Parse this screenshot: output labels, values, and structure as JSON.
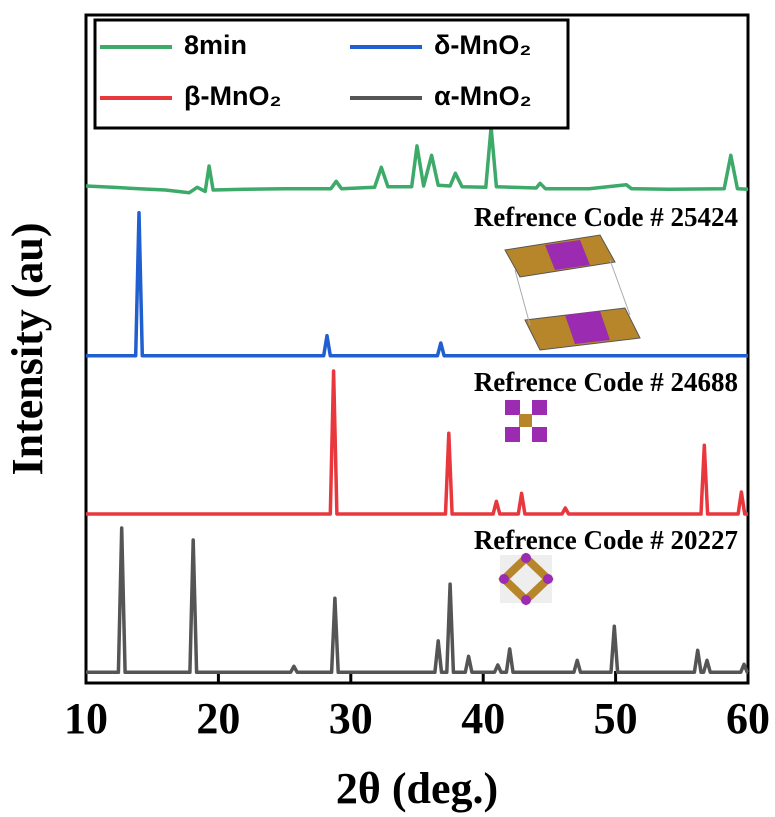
{
  "chart_data": {
    "type": "line",
    "xlabel": "2θ (deg.)",
    "ylabel": "Intensity (au)",
    "xlim": [
      10,
      60
    ],
    "xticks": [
      10,
      20,
      30,
      40,
      50,
      60
    ],
    "ylim": [
      0,
      100
    ],
    "annotations": [
      "Refrence Code # 25424",
      "Refrence Code # 24688",
      "Refrence Code # 20227"
    ],
    "series": [
      {
        "name": "8min",
        "color": "#3daa6a",
        "x": [
          10,
          12,
          14,
          16,
          17.8,
          18.4,
          19.0,
          19.3,
          19.6,
          22,
          25,
          28.5,
          28.9,
          29.3,
          31.8,
          32.3,
          32.8,
          34.6,
          35.0,
          35.5,
          36.1,
          36.6,
          37.5,
          37.9,
          38.4,
          40.2,
          40.6,
          41.0,
          44.0,
          44.3,
          44.7,
          48,
          50.8,
          51.2,
          54,
          58.2,
          58.7,
          59.2,
          60
        ],
        "values": [
          74.4,
          74.2,
          74.0,
          73.8,
          73.4,
          74.2,
          73.6,
          77.4,
          73.8,
          73.9,
          74.0,
          74.0,
          75.1,
          74.0,
          74.2,
          77.2,
          74.3,
          74.3,
          80.4,
          74.4,
          79.0,
          74.5,
          74.4,
          76.3,
          74.3,
          74.2,
          83.2,
          74.3,
          74.1,
          74.8,
          74.0,
          74.0,
          74.6,
          74.0,
          73.9,
          74.0,
          79.0,
          74.0,
          73.9
        ]
      },
      {
        "name": "δ-MnO₂",
        "color": "#1f5fcf",
        "x": [
          10,
          13.75,
          14.0,
          14.25,
          27.95,
          28.2,
          28.45,
          36.55,
          36.8,
          37.05,
          60
        ],
        "values": [
          49,
          49,
          70.4,
          49,
          49,
          52,
          49,
          49,
          50.9,
          49,
          49
        ]
      },
      {
        "name": "β-MnO₂",
        "color": "#e8383d",
        "x": [
          10,
          28.45,
          28.7,
          28.95,
          37.15,
          37.4,
          37.65,
          40.75,
          41.0,
          41.25,
          42.65,
          42.9,
          43.15,
          45.95,
          46.2,
          46.45,
          56.45,
          56.7,
          56.95,
          59.25,
          59.5,
          59.75,
          60
        ],
        "values": [
          25.3,
          25.3,
          46.7,
          25.3,
          25.3,
          37.4,
          25.3,
          25.3,
          27.2,
          25.3,
          25.3,
          28.4,
          25.3,
          25.3,
          26.2,
          25.3,
          25.3,
          35.6,
          25.3,
          25.3,
          28.6,
          25.3,
          25.3
        ]
      },
      {
        "name": "α-MnO₂",
        "color": "#555555",
        "x": [
          10,
          12.45,
          12.7,
          12.95,
          17.85,
          18.1,
          18.35,
          25.45,
          25.7,
          25.95,
          28.55,
          28.8,
          29.05,
          36.35,
          36.6,
          36.85,
          37.25,
          37.5,
          37.75,
          38.65,
          38.9,
          39.15,
          40.85,
          41.1,
          41.35,
          41.75,
          42.0,
          42.25,
          46.85,
          47.1,
          47.35,
          49.65,
          49.9,
          50.15,
          55.95,
          56.2,
          56.45,
          56.65,
          56.9,
          57.15,
          59.45,
          59.7,
          59.95,
          60
        ],
        "values": [
          1.6,
          1.6,
          23.2,
          1.6,
          1.6,
          21.4,
          1.6,
          1.6,
          2.5,
          1.6,
          1.6,
          12.7,
          1.6,
          1.6,
          6.3,
          1.6,
          1.6,
          14.8,
          1.6,
          1.6,
          4.0,
          1.6,
          1.6,
          2.7,
          1.6,
          1.6,
          5.1,
          1.6,
          1.6,
          3.4,
          1.6,
          1.6,
          8.5,
          1.6,
          1.6,
          4.9,
          1.6,
          1.6,
          3.4,
          1.6,
          1.6,
          2.8,
          1.6,
          1.6
        ]
      }
    ]
  }
}
